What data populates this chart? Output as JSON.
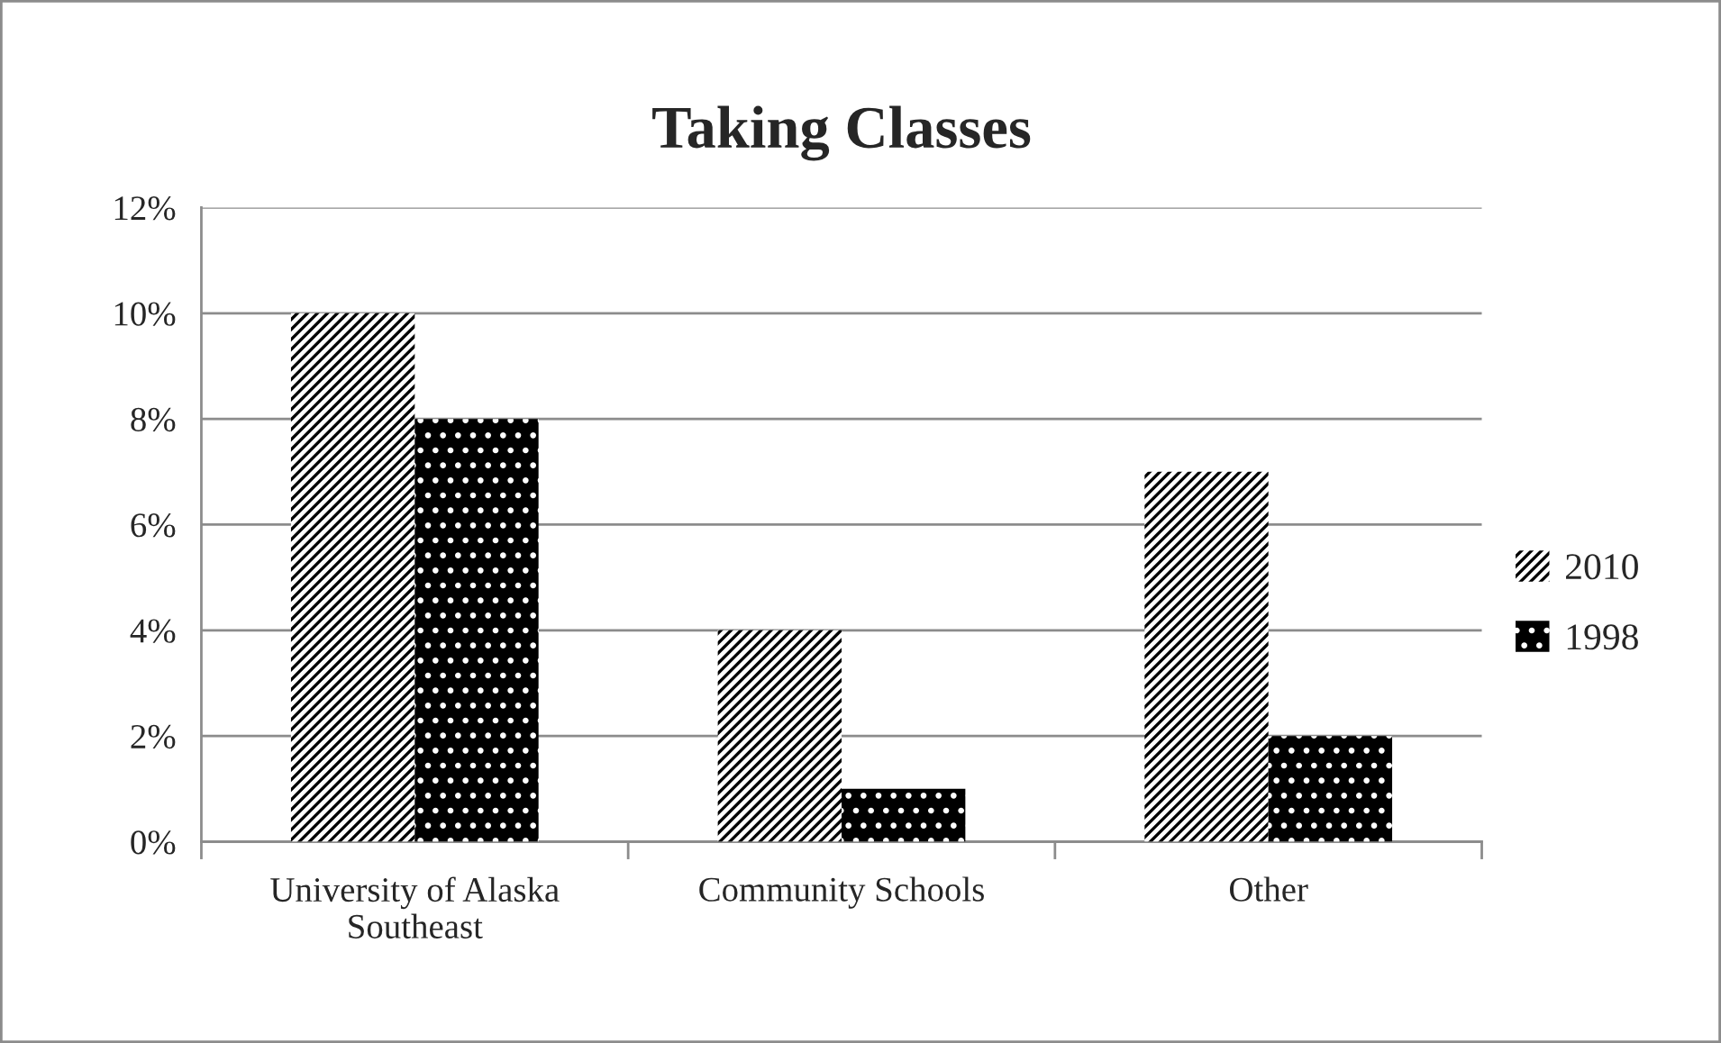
{
  "chart_data": {
    "type": "bar",
    "title": "Taking Classes",
    "categories": [
      "University of Alaska\nSoutheast",
      "Community Schools",
      "Other"
    ],
    "series": [
      {
        "name": "2010",
        "color": "#ffffff",
        "values": [
          10,
          4,
          7
        ]
      },
      {
        "name": "1998",
        "color": "#000000",
        "values": [
          8,
          1,
          2
        ]
      }
    ],
    "ylim": [
      0,
      12
    ],
    "yticks": [
      {
        "value": 0,
        "label": "0%"
      },
      {
        "value": 2,
        "label": "2%"
      },
      {
        "value": 4,
        "label": "4%"
      },
      {
        "value": 6,
        "label": "6%"
      },
      {
        "value": 8,
        "label": "8%"
      },
      {
        "value": 10,
        "label": "10%"
      },
      {
        "value": 12,
        "label": "12%"
      }
    ],
    "grid": "y",
    "legend": "right"
  }
}
